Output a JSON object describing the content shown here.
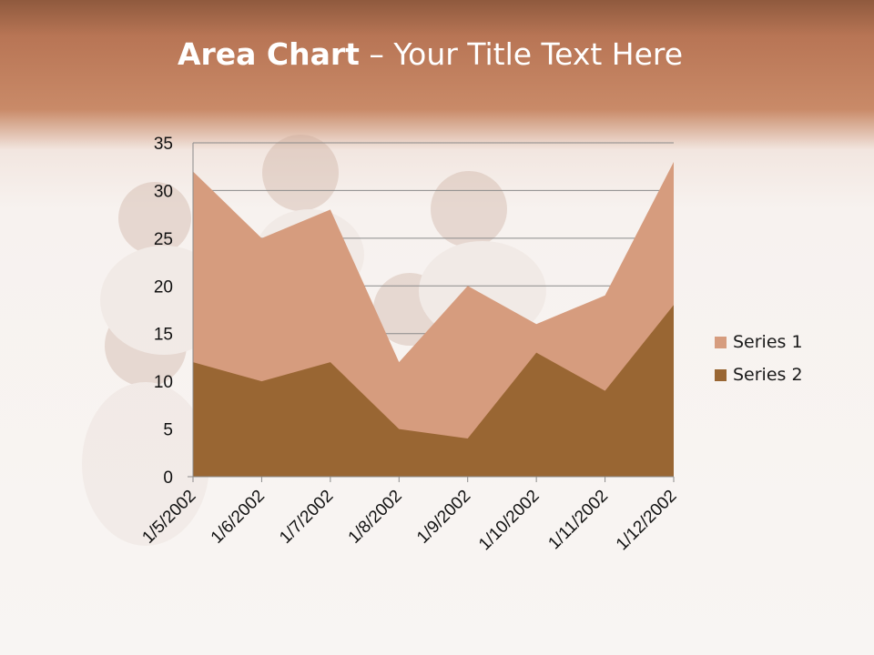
{
  "slide": {
    "title_bold": "Area Chart",
    "title_rest": " – Your Title Text Here"
  },
  "chart_data": {
    "type": "area",
    "title": "",
    "xlabel": "",
    "ylabel": "",
    "categories": [
      "1/5/2002",
      "1/6/2002",
      "1/7/2002",
      "1/8/2002",
      "1/9/2002",
      "1/10/2002",
      "1/11/2002",
      "1/12/2002"
    ],
    "series": [
      {
        "name": "Series 1",
        "values": [
          32,
          25,
          28,
          12,
          20,
          16,
          19,
          33
        ],
        "color": "#D69C7E"
      },
      {
        "name": "Series 2",
        "values": [
          12,
          10,
          12,
          5,
          4,
          13,
          9,
          18
        ],
        "color": "#996633"
      }
    ],
    "ylim": [
      0,
      35
    ],
    "yticks": [
      0,
      5,
      10,
      15,
      20,
      25,
      30,
      35
    ],
    "grid": true,
    "legend": "right"
  }
}
